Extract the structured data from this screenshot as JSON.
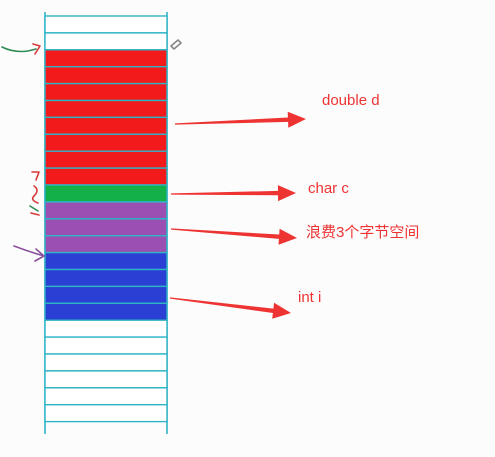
{
  "diagram": {
    "colors": {
      "outline": "#2fb4c6",
      "empty": "#ffffff",
      "double": "#f21a1a",
      "char": "#13b04a",
      "padding": "#9b4fb3",
      "int": "#2a3fd4",
      "annotation": "#ee3333",
      "pen_green": "#2e8b57",
      "pen_red": "#d83a3a",
      "pen_purple": "#8a4f9e"
    },
    "memory_blocks": [
      {
        "kind": "empty",
        "bytes": 2
      },
      {
        "kind": "double",
        "bytes": 8
      },
      {
        "kind": "char",
        "bytes": 1
      },
      {
        "kind": "padding",
        "bytes": 3
      },
      {
        "kind": "int",
        "bytes": 4
      },
      {
        "kind": "empty",
        "bytes": 6
      }
    ],
    "labels": {
      "double": "double d",
      "char": "char c",
      "padding": "浪费3个字节空间",
      "int": "int i"
    }
  }
}
